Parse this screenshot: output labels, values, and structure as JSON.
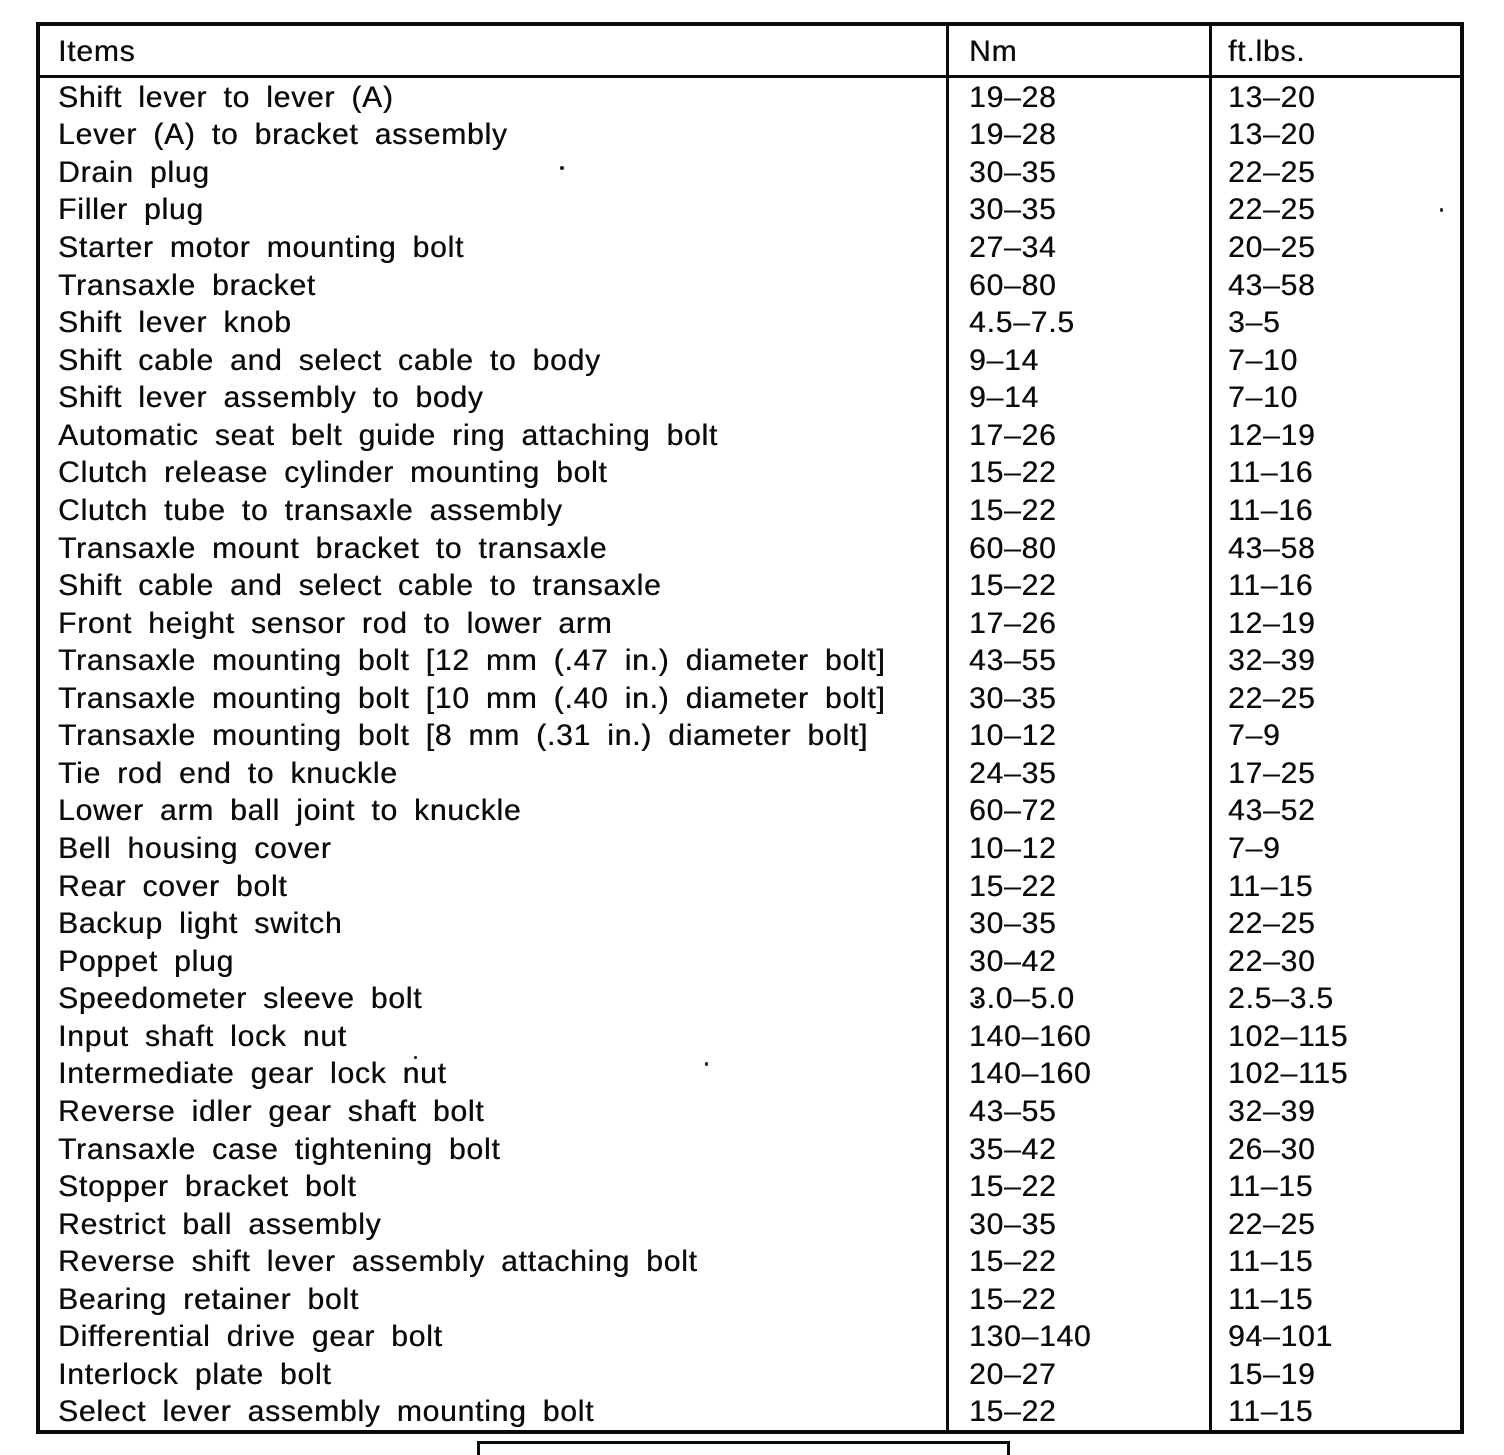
{
  "table": {
    "columns": [
      "Items",
      "Nm",
      "ft.lbs."
    ],
    "rows": [
      {
        "item": "Shift lever to lever (A)",
        "nm": "19–28",
        "ftlbs": "13–20"
      },
      {
        "item": "Lever (A) to bracket assembly",
        "nm": "19–28",
        "ftlbs": "13–20"
      },
      {
        "item": "Drain plug",
        "nm": "30–35",
        "ftlbs": "22–25"
      },
      {
        "item": "Filler plug",
        "nm": "30–35",
        "ftlbs": "22–25"
      },
      {
        "item": "Starter motor mounting bolt",
        "nm": "27–34",
        "ftlbs": "20–25"
      },
      {
        "item": "Transaxle bracket",
        "nm": "60–80",
        "ftlbs": "43–58"
      },
      {
        "item": "Shift lever knob",
        "nm": "4.5–7.5",
        "ftlbs": "3–5"
      },
      {
        "item": "Shift cable and select cable to body",
        "nm": "9–14",
        "ftlbs": "7–10"
      },
      {
        "item": "Shift lever assembly to body",
        "nm": "9–14",
        "ftlbs": "7–10"
      },
      {
        "item": "Automatic seat belt guide ring attaching bolt",
        "nm": "17–26",
        "ftlbs": "12–19"
      },
      {
        "item": "Clutch release cylinder mounting bolt",
        "nm": "15–22",
        "ftlbs": "11–16"
      },
      {
        "item": "Clutch tube to transaxle assembly",
        "nm": "15–22",
        "ftlbs": "11–16"
      },
      {
        "item": "Transaxle mount bracket to transaxle",
        "nm": "60–80",
        "ftlbs": "43–58"
      },
      {
        "item": "Shift cable and select cable to transaxle",
        "nm": "15–22",
        "ftlbs": "11–16"
      },
      {
        "item": "Front height sensor rod to lower arm",
        "nm": "17–26",
        "ftlbs": "12–19"
      },
      {
        "item": "Transaxle mounting bolt [12 mm (.47 in.) diameter bolt]",
        "nm": "43–55",
        "ftlbs": "32–39"
      },
      {
        "item": "Transaxle mounting bolt [10 mm (.40 in.) diameter bolt]",
        "nm": "30–35",
        "ftlbs": "22–25"
      },
      {
        "item": "Transaxle mounting bolt [8 mm (.31 in.) diameter bolt]",
        "nm": "10–12",
        "ftlbs": "7–9"
      },
      {
        "item": "Tie rod end to knuckle",
        "nm": "24–35",
        "ftlbs": "17–25"
      },
      {
        "item": "Lower arm ball joint to knuckle",
        "nm": "60–72",
        "ftlbs": "43–52"
      },
      {
        "item": "Bell housing cover",
        "nm": "10–12",
        "ftlbs": "7–9"
      },
      {
        "item": "Rear cover bolt",
        "nm": "15–22",
        "ftlbs": "11–15"
      },
      {
        "item": "Backup light switch",
        "nm": "30–35",
        "ftlbs": "22–25"
      },
      {
        "item": "Poppet plug",
        "nm": "30–42",
        "ftlbs": "22–30"
      },
      {
        "item": "Speedometer sleeve bolt",
        "nm": "3.0–5.0",
        "ftlbs": "2.5–3.5"
      },
      {
        "item": "Input shaft lock nut",
        "nm": "140–160",
        "ftlbs": "102–115"
      },
      {
        "item": "Intermediate gear lock nut",
        "nm": "140–160",
        "ftlbs": "102–115"
      },
      {
        "item": "Reverse idler gear shaft bolt",
        "nm": "43–55",
        "ftlbs": "32–39"
      },
      {
        "item": "Transaxle case tightening bolt",
        "nm": "35–42",
        "ftlbs": "26–30"
      },
      {
        "item": "Stopper bracket bolt",
        "nm": "15–22",
        "ftlbs": "11–15"
      },
      {
        "item": "Restrict ball assembly",
        "nm": "30–35",
        "ftlbs": "22–25"
      },
      {
        "item": "Reverse shift lever assembly attaching bolt",
        "nm": "15–22",
        "ftlbs": "11–15"
      },
      {
        "item": "Bearing retainer bolt",
        "nm": "15–22",
        "ftlbs": "11–15"
      },
      {
        "item": "Differential drive gear bolt",
        "nm": "130–140",
        "ftlbs": "94–101"
      },
      {
        "item": "Interlock plate bolt",
        "nm": "20–27",
        "ftlbs": "15–19"
      },
      {
        "item": "Select lever assembly mounting bolt",
        "nm": "15–22",
        "ftlbs": "11–15"
      }
    ]
  }
}
